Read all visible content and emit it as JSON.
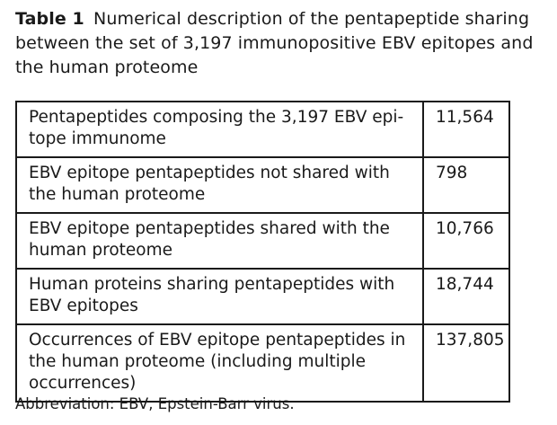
{
  "caption": {
    "label": "Table 1",
    "text": "Numerical description of the pentapeptide sharing between the set of 3,197 immunopositive EBV epitopes and the human proteome"
  },
  "table": {
    "rows": [
      {
        "description": "Pentapeptides composing the 3,197 EBV epi-tope immunome",
        "value": "11,564"
      },
      {
        "description": "EBV epitope pentapeptides not shared with the human proteome",
        "value": "798"
      },
      {
        "description": "EBV epitope pentapeptides shared with the human proteome",
        "value": "10,766"
      },
      {
        "description": "Human proteins sharing pentapeptides with EBV epitopes",
        "value": "18,744"
      },
      {
        "description": "Occurrences of EBV epitope pentapeptides in the human proteome (including multiple occurrences)",
        "value": "137,805"
      }
    ]
  },
  "footnote": "Abbreviation: EBV, Epstein-Barr virus."
}
